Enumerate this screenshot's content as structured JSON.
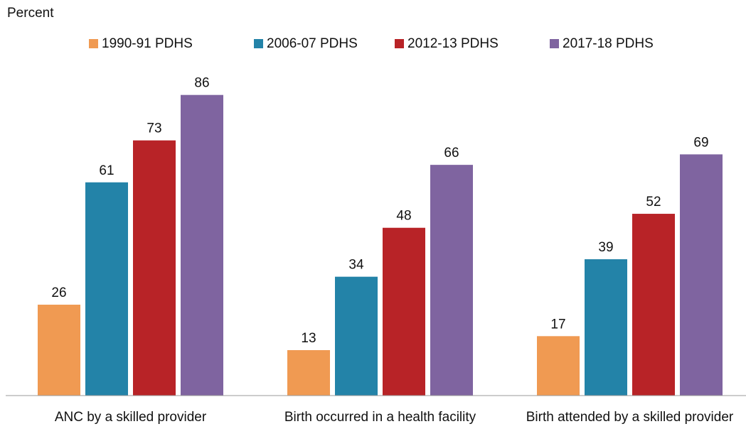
{
  "chart_data": {
    "type": "bar",
    "y_label": "Percent",
    "categories": [
      "ANC by a skilled provider",
      "Birth occurred in a health facility",
      "Birth attended by a skilled provider"
    ],
    "series": [
      {
        "name": "1990-91 PDHS",
        "color": "#f09a52",
        "values": [
          26,
          13,
          17
        ]
      },
      {
        "name": "2006-07 PDHS",
        "color": "#2383a8",
        "values": [
          61,
          34,
          39
        ]
      },
      {
        "name": "2012-13 PDHS",
        "color": "#b82327",
        "values": [
          73,
          48,
          52
        ]
      },
      {
        "name": "2017-18 PDHS",
        "color": "#7f64a0",
        "values": [
          86,
          66,
          69
        ]
      }
    ],
    "ylim": [
      0,
      90
    ],
    "legend": "top",
    "grid": false
  }
}
